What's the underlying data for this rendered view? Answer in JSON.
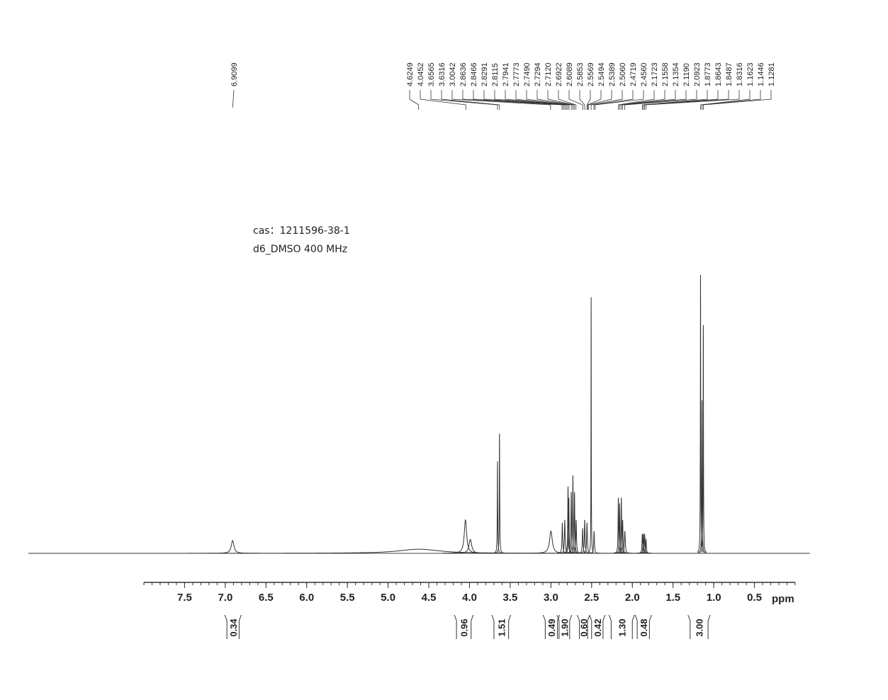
{
  "chart_data": {
    "type": "nmr",
    "annotations": [
      "cas：1211596-38-1",
      "d6_DMSO  400  MHz"
    ],
    "x_label": "ppm",
    "xlim": [
      8.0,
      0.0
    ],
    "xticks": [
      7.5,
      {
        "value": 7,
        "label": "7.0"
      },
      6.5,
      {
        "value": 6,
        "label": "6.0"
      },
      5.5,
      {
        "value": 5,
        "label": "5.0"
      },
      4.5,
      {
        "value": 4,
        "label": "4.0"
      },
      3.5,
      {
        "value": 3,
        "label": "3.0"
      },
      2.5,
      {
        "value": 2,
        "label": "2.0"
      },
      1.5,
      {
        "value": 1,
        "label": "1.0"
      },
      0.5
    ],
    "peak_labels": [
      {
        "value": 6.9099,
        "label": "6.9099"
      },
      {
        "value": 4.6249,
        "label": "4.6249"
      },
      {
        "value": 4.0452,
        "label": "4.0452"
      },
      {
        "value": 3.6565,
        "label": "3.6565"
      },
      {
        "value": 3.6316,
        "label": "3.6316"
      },
      {
        "value": 3.0042,
        "label": "3.0042"
      },
      {
        "value": 2.8636,
        "label": "2.8636"
      },
      {
        "value": 2.8466,
        "label": "2.8466"
      },
      {
        "value": 2.8291,
        "label": "2.8291"
      },
      {
        "value": 2.8115,
        "label": "2.8115"
      },
      {
        "value": 2.7941,
        "label": "2.7941"
      },
      {
        "value": 2.7773,
        "label": "2.7773"
      },
      {
        "value": 2.749,
        "label": "2.7490"
      },
      {
        "value": 2.7294,
        "label": "2.7294"
      },
      {
        "value": 2.712,
        "label": "2.7120"
      },
      {
        "value": 2.6922,
        "label": "2.6922"
      },
      {
        "value": 2.6089,
        "label": "2.6089"
      },
      {
        "value": 2.5853,
        "label": "2.5853"
      },
      {
        "value": 2.5569,
        "label": "2.5569"
      },
      {
        "value": 2.5494,
        "label": "2.5494"
      },
      {
        "value": 2.5389,
        "label": "2.5389"
      },
      {
        "value": 2.506,
        "label": "2.5060"
      },
      {
        "value": 2.4719,
        "label": "2.4719"
      },
      {
        "value": 2.456,
        "label": "2.4560"
      },
      {
        "value": 2.1723,
        "label": "2.1723"
      },
      {
        "value": 2.1558,
        "label": "2.1558"
      },
      {
        "value": 2.1354,
        "label": "2.1354"
      },
      {
        "value": 2.119,
        "label": "2.1190"
      },
      {
        "value": 2.0923,
        "label": "2.0923"
      },
      {
        "value": 1.8773,
        "label": "1.8773"
      },
      {
        "value": 1.8643,
        "label": "1.8643"
      },
      {
        "value": 1.8487,
        "label": "1.8487"
      },
      {
        "value": 1.8316,
        "label": "1.8316"
      },
      {
        "value": 1.1623,
        "label": "1.1623"
      },
      {
        "value": 1.1446,
        "label": "1.1446"
      },
      {
        "value": 1.1281,
        "label": "1.1281"
      }
    ],
    "peaks": {
      "x": [
        6.91,
        4.62,
        4.05,
        3.99,
        3.6565,
        3.6316,
        3.0,
        2.86,
        2.83,
        2.79,
        2.78,
        2.75,
        2.73,
        2.71,
        2.69,
        2.61,
        2.585,
        2.557,
        2.506,
        2.47,
        2.172,
        2.156,
        2.135,
        2.119,
        2.092,
        1.877,
        1.864,
        1.849,
        1.832,
        1.1623,
        1.1446,
        1.1281
      ],
      "intensity": [
        4.6,
        1.5,
        12,
        5,
        33,
        43,
        8,
        11,
        12,
        24,
        20,
        22,
        28,
        22,
        12,
        9,
        12,
        11,
        92,
        8,
        20,
        18,
        20,
        12,
        8,
        7,
        7,
        7,
        5,
        100,
        55,
        82
      ],
      "width": [
        0.04,
        0.6,
        0.035,
        0.04,
        0.006,
        0.006,
        0.04,
        0.01,
        0.01,
        0.008,
        0.008,
        0.008,
        0.008,
        0.008,
        0.01,
        0.01,
        0.01,
        0.01,
        0.004,
        0.01,
        0.008,
        0.008,
        0.008,
        0.01,
        0.012,
        0.01,
        0.01,
        0.01,
        0.01,
        0.005,
        0.006,
        0.005
      ]
    },
    "integrals": {
      "ranges": [
        [
          6.98,
          6.83
        ],
        [
          4.16,
          3.98
        ],
        [
          3.7,
          3.52
        ],
        [
          3.07,
          2.92
        ],
        [
          2.9,
          2.77
        ],
        [
          2.65,
          2.55
        ],
        [
          2.5,
          2.36
        ],
        [
          2.26,
          2.0
        ],
        [
          1.94,
          1.79
        ],
        [
          1.29,
          1.07
        ]
      ],
      "values": [
        0.34,
        0.96,
        1.51,
        0.49,
        1.9,
        0.6,
        0.42,
        1.3,
        0.48,
        3
      ],
      "value_labels": [
        "0.34",
        "0.96",
        "1.51",
        "0.49",
        "1.90",
        "0.60",
        "0.42",
        "1.30",
        "0.48",
        "3.00"
      ]
    }
  }
}
